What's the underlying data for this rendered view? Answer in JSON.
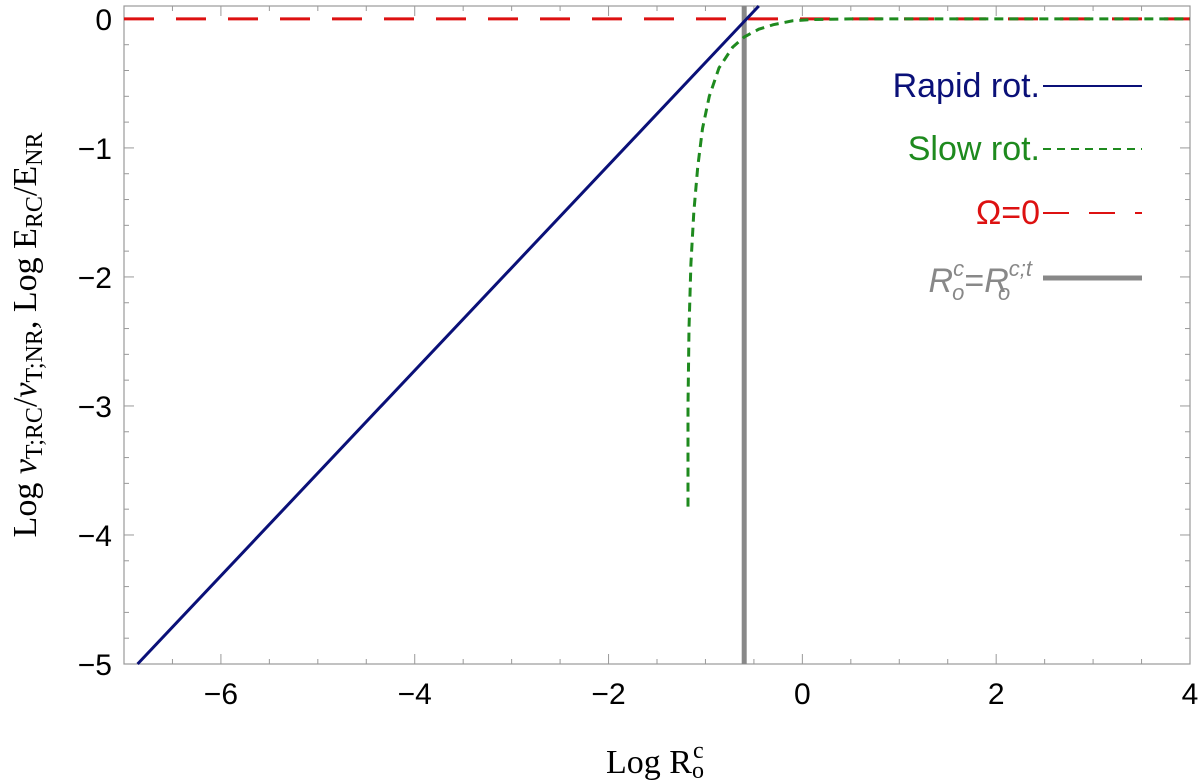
{
  "chart_data": {
    "type": "line",
    "xlabel": {
      "main": "Log R",
      "sub": "o",
      "sup": "c"
    },
    "ylabel": {
      "p1": "Log ",
      "v1": "v",
      "s1": "T;RC",
      "p2": "/",
      "v2": "v",
      "s2": "T;NR",
      "p3": ", Log E",
      "s3": "RC",
      "p4": "/E",
      "s4": "NR"
    },
    "xlim": [
      -7,
      4
    ],
    "ylim": [
      -5,
      0.1
    ],
    "xticks": [
      -6,
      -4,
      -2,
      0,
      2,
      4
    ],
    "xtick_labels": [
      "−6",
      "−4",
      "−2",
      "0",
      "2",
      "4"
    ],
    "yticks": [
      0,
      -1,
      -2,
      -3,
      -4,
      -5
    ],
    "ytick_labels": [
      "0",
      "−1",
      "−2",
      "−3",
      "−4",
      "−5"
    ],
    "grid": false,
    "legend_position": "top-right",
    "series": [
      {
        "name": "Rapid rot.",
        "color": "#0a1078",
        "style": "solid",
        "x": [
          -6.86,
          -0.45
        ],
        "y": [
          -5.0,
          0.1
        ]
      },
      {
        "name": "Slow rot.",
        "color": "#1e8a1e",
        "style": "dashed",
        "x": [
          -1.18,
          -1.18,
          -1.17,
          -1.15,
          -1.12,
          -1.08,
          -1.03,
          -0.96,
          -0.86,
          -0.72,
          -0.6,
          -0.45,
          -0.3,
          -0.1,
          0.1,
          0.5,
          1.0,
          2.0,
          3.0,
          4.0
        ],
        "y": [
          -3.78,
          -3.0,
          -2.4,
          -1.9,
          -1.5,
          -1.15,
          -0.85,
          -0.6,
          -0.38,
          -0.22,
          -0.14,
          -0.08,
          -0.045,
          -0.015,
          -0.005,
          0,
          0,
          0,
          0,
          0
        ]
      },
      {
        "name": "Ω=0",
        "color": "#dd1111",
        "style": "long-dash",
        "x": [
          -7,
          4
        ],
        "y": [
          0,
          0
        ]
      },
      {
        "name": {
          "main1": "R",
          "sup1": "c",
          "sub1": "o",
          "eq": "=",
          "main2": "R",
          "sup2": "c;t",
          "sub2": "o"
        },
        "color": "#888888",
        "style": "thick",
        "x": [
          -0.6,
          -0.6
        ],
        "y": [
          -5,
          0.1
        ]
      }
    ]
  }
}
